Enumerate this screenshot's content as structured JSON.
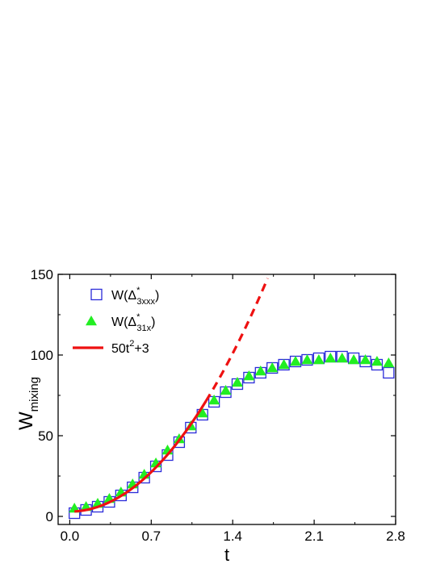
{
  "chart_data": {
    "type": "scatter",
    "xlabel": "t",
    "ylabel_main": "W",
    "ylabel_sub": "mixing",
    "xlim": [
      -0.1,
      2.8
    ],
    "ylim": [
      -5,
      150
    ],
    "xticks": [
      "0.0",
      "0.7",
      "1.4",
      "2.1",
      "2.8"
    ],
    "yticks": [
      "0",
      "50",
      "100",
      "150"
    ],
    "legend_position": "top-left",
    "series": [
      {
        "name": "W(Δ*3xxx)",
        "label_main": "W(Δ",
        "label_sup": "*",
        "label_sub": "3xxx",
        "label_close": ")",
        "marker": "open-square",
        "color": "#2b2bd9",
        "x": [
          0.04,
          0.14,
          0.24,
          0.34,
          0.44,
          0.54,
          0.64,
          0.74,
          0.84,
          0.94,
          1.04,
          1.14,
          1.24,
          1.34,
          1.44,
          1.54,
          1.64,
          1.74,
          1.84,
          1.94,
          2.04,
          2.14,
          2.24,
          2.34,
          2.44,
          2.54,
          2.64,
          2.74
        ],
        "y": [
          2,
          4,
          6,
          9,
          13,
          18,
          24,
          31,
          38,
          46,
          55,
          63,
          71,
          77,
          82,
          86,
          89,
          92,
          94,
          96,
          97,
          98,
          99,
          99,
          98,
          96,
          94,
          89
        ]
      },
      {
        "name": "W(Δ*31x)",
        "label_main": "W(Δ",
        "label_sup": "*",
        "label_sub": "31x",
        "label_close": ")",
        "marker": "filled-triangle",
        "color": "#22ee22",
        "x": [
          0.04,
          0.14,
          0.24,
          0.34,
          0.44,
          0.54,
          0.64,
          0.74,
          0.84,
          0.94,
          1.04,
          1.14,
          1.24,
          1.34,
          1.44,
          1.54,
          1.64,
          1.74,
          1.84,
          1.94,
          2.04,
          2.14,
          2.24,
          2.34,
          2.44,
          2.54,
          2.64,
          2.74
        ],
        "y": [
          5,
          6,
          8,
          11,
          15,
          20,
          26,
          33,
          41,
          48,
          56,
          64,
          72,
          78,
          83,
          87,
          90,
          92,
          94,
          96,
          97,
          97,
          98,
          98,
          97,
          97,
          96,
          95
        ]
      },
      {
        "name": "50t2+3",
        "label_main": "50t",
        "label_sup": "2",
        "label_close": "+3",
        "marker": "line",
        "color": "#ee1111",
        "formula": "50t^2+3",
        "solid_range": [
          0.04,
          1.17
        ],
        "dashed_range": [
          1.17,
          1.7
        ]
      }
    ]
  }
}
